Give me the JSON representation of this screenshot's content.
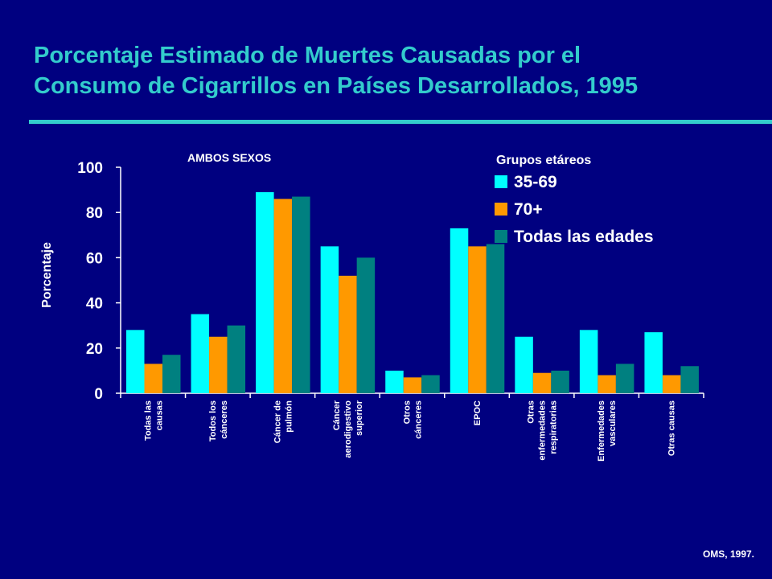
{
  "title_line1": "Porcentaje Estimado de Muertes Causadas por el",
  "title_line2": "Consumo de Cigarrillos en Países Desarrollados, 1995",
  "subtitle": "AMBOS SEXOS",
  "source": "OMS, 1997.",
  "colors": {
    "background": "#000080",
    "accent": "#33CCCC",
    "series": [
      "#00FFFF",
      "#FF9900",
      "#008080"
    ]
  },
  "chart_data": {
    "type": "bar",
    "title": "",
    "xlabel": "",
    "ylabel": "Porcentaje",
    "ylim": [
      0,
      100
    ],
    "yticks": [
      0,
      20,
      40,
      60,
      80,
      100
    ],
    "legend_title": "Grupos etáreos",
    "legend_position": "top-right",
    "grid": false,
    "categories": [
      [
        "Todas las",
        "causas"
      ],
      [
        "Todos los",
        "cánceres"
      ],
      [
        "Cáncer de",
        "pulmón"
      ],
      [
        "Cáncer",
        "aerodigestivo",
        "superior"
      ],
      [
        "Otros",
        "cánceres"
      ],
      [
        "EPOC"
      ],
      [
        "Otras",
        "enfermedades",
        "respiratorias"
      ],
      [
        "Enfermedades",
        "vasculares"
      ],
      [
        "Otras causas"
      ]
    ],
    "series": [
      {
        "name": "35-69",
        "values": [
          28,
          35,
          89,
          65,
          10,
          73,
          25,
          28,
          27
        ]
      },
      {
        "name": "70+",
        "values": [
          13,
          25,
          86,
          52,
          7,
          65,
          9,
          8,
          8
        ]
      },
      {
        "name": "Todas las edades",
        "values": [
          17,
          30,
          87,
          60,
          8,
          66,
          10,
          13,
          12
        ]
      }
    ]
  }
}
